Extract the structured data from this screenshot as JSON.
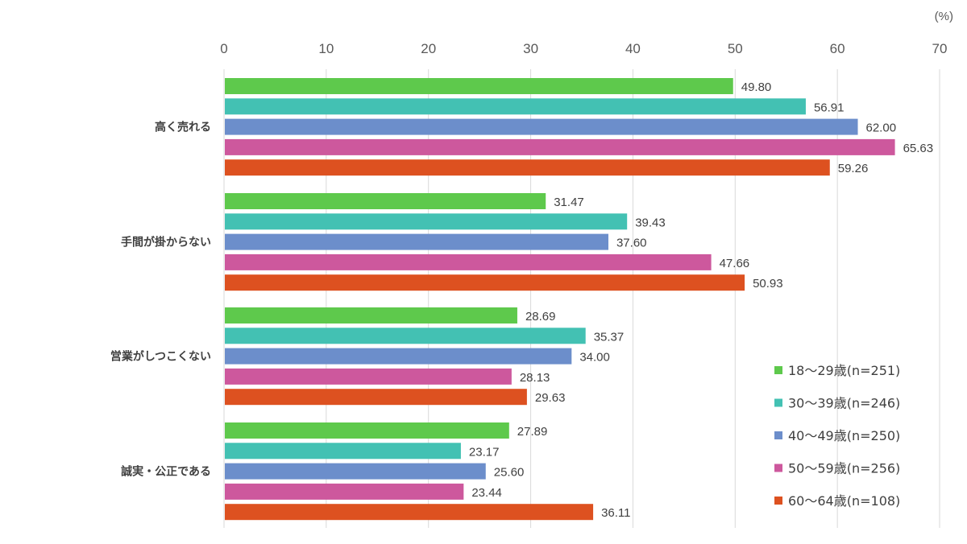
{
  "chart_data": {
    "type": "bar",
    "orientation": "horizontal",
    "unit_label": "(%)",
    "xlim": [
      0,
      70
    ],
    "x_ticks": [
      0,
      10,
      20,
      30,
      40,
      50,
      60,
      70
    ],
    "grid": true,
    "legend_position": "bottom-right",
    "categories": [
      "高く売れる",
      "手間が掛からない",
      "営業がしつこくない",
      "誠実・公正である"
    ],
    "series": [
      {
        "name": "18～29歳(n=251)",
        "color": "#5ec94c",
        "values": [
          49.8,
          31.47,
          28.69,
          27.89
        ],
        "labels": [
          "49.80",
          "31.47",
          "28.69",
          "27.89"
        ]
      },
      {
        "name": "30～39歳(n=246)",
        "color": "#43c1b3",
        "values": [
          56.91,
          39.43,
          35.37,
          23.17
        ],
        "labels": [
          "56.91",
          "39.43",
          "35.37",
          "23.17"
        ]
      },
      {
        "name": "40～49歳(n=250)",
        "color": "#6c8ecb",
        "values": [
          62.0,
          37.6,
          34.0,
          25.6
        ],
        "labels": [
          "62.00",
          "37.60",
          "34.00",
          "25.60"
        ]
      },
      {
        "name": "50～59歳(n=256)",
        "color": "#cd589d",
        "values": [
          65.63,
          47.66,
          28.13,
          23.44
        ],
        "labels": [
          "65.63",
          "47.66",
          "28.13",
          "23.44"
        ]
      },
      {
        "name": "60～64歳(n=108)",
        "color": "#dd5120",
        "values": [
          59.26,
          50.93,
          29.63,
          36.11
        ],
        "labels": [
          "59.26",
          "50.93",
          "29.63",
          "36.11"
        ]
      }
    ]
  }
}
